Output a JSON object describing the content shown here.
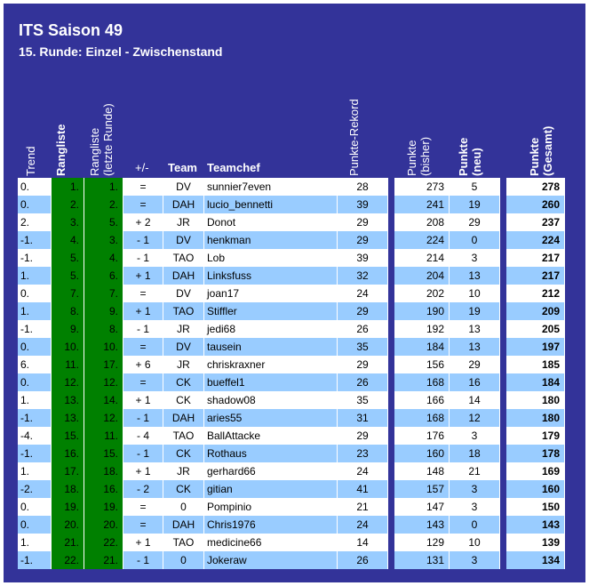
{
  "title": "ITS Saison 49",
  "subtitle": "15. Runde: Einzel - Zwischenstand",
  "headers": {
    "trend": "Trend",
    "rangliste": "Rangliste",
    "rangliste_prev_1": "Rangliste",
    "rangliste_prev_2": "(letzte Runde)",
    "plusminus": "+/-",
    "team": "Team",
    "teamchef": "Teamchef",
    "rekord": "Punkte-Rekord",
    "bisher_1": "Punkte",
    "bisher_2": "(bisher)",
    "neu_1": "Punkte",
    "neu_2": "(neu)",
    "gesamt_1": "Punkte",
    "gesamt_2": "(Gesamt)"
  },
  "colors": {
    "background": "#333399",
    "row_white": "#ffffff",
    "row_blue": "#99ccff",
    "rank_green": "#008000"
  },
  "rows": [
    {
      "trend": "0.",
      "rank": "1.",
      "prev": "1.",
      "pm": "=",
      "team": "DV",
      "chef": "sunnier7even",
      "rekord": "28",
      "bisher": "273",
      "neu": "5",
      "gesamt": "278"
    },
    {
      "trend": "0.",
      "rank": "2.",
      "prev": "2.",
      "pm": "=",
      "team": "DAH",
      "chef": "lucio_bennetti",
      "rekord": "39",
      "bisher": "241",
      "neu": "19",
      "gesamt": "260"
    },
    {
      "trend": "2.",
      "rank": "3.",
      "prev": "5.",
      "pm": "+ 2",
      "team": "JR",
      "chef": "Donot",
      "rekord": "29",
      "bisher": "208",
      "neu": "29",
      "gesamt": "237"
    },
    {
      "trend": "-1.",
      "rank": "4.",
      "prev": "3.",
      "pm": "- 1",
      "team": "DV",
      "chef": "henkman",
      "rekord": "29",
      "bisher": "224",
      "neu": "0",
      "gesamt": "224"
    },
    {
      "trend": "-1.",
      "rank": "5.",
      "prev": "4.",
      "pm": "- 1",
      "team": "TAO",
      "chef": "Lob",
      "rekord": "39",
      "bisher": "214",
      "neu": "3",
      "gesamt": "217"
    },
    {
      "trend": "1.",
      "rank": "5.",
      "prev": "6.",
      "pm": "+ 1",
      "team": "DAH",
      "chef": "Linksfuss",
      "rekord": "32",
      "bisher": "204",
      "neu": "13",
      "gesamt": "217"
    },
    {
      "trend": "0.",
      "rank": "7.",
      "prev": "7.",
      "pm": "=",
      "team": "DV",
      "chef": "joan17",
      "rekord": "24",
      "bisher": "202",
      "neu": "10",
      "gesamt": "212"
    },
    {
      "trend": "1.",
      "rank": "8.",
      "prev": "9.",
      "pm": "+ 1",
      "team": "TAO",
      "chef": "Stiffler",
      "rekord": "29",
      "bisher": "190",
      "neu": "19",
      "gesamt": "209"
    },
    {
      "trend": "-1.",
      "rank": "9.",
      "prev": "8.",
      "pm": "- 1",
      "team": "JR",
      "chef": "jedi68",
      "rekord": "26",
      "bisher": "192",
      "neu": "13",
      "gesamt": "205"
    },
    {
      "trend": "0.",
      "rank": "10.",
      "prev": "10.",
      "pm": "=",
      "team": "DV",
      "chef": "tausein",
      "rekord": "35",
      "bisher": "184",
      "neu": "13",
      "gesamt": "197"
    },
    {
      "trend": "6.",
      "rank": "11.",
      "prev": "17.",
      "pm": "+ 6",
      "team": "JR",
      "chef": "chriskraxner",
      "rekord": "29",
      "bisher": "156",
      "neu": "29",
      "gesamt": "185"
    },
    {
      "trend": "0.",
      "rank": "12.",
      "prev": "12.",
      "pm": "=",
      "team": "CK",
      "chef": "bueffel1",
      "rekord": "26",
      "bisher": "168",
      "neu": "16",
      "gesamt": "184"
    },
    {
      "trend": "1.",
      "rank": "13.",
      "prev": "14.",
      "pm": "+ 1",
      "team": "CK",
      "chef": "shadow08",
      "rekord": "35",
      "bisher": "166",
      "neu": "14",
      "gesamt": "180"
    },
    {
      "trend": "-1.",
      "rank": "13.",
      "prev": "12.",
      "pm": "- 1",
      "team": "DAH",
      "chef": "aries55",
      "rekord": "31",
      "bisher": "168",
      "neu": "12",
      "gesamt": "180"
    },
    {
      "trend": "-4.",
      "rank": "15.",
      "prev": "11.",
      "pm": "- 4",
      "team": "TAO",
      "chef": "BallAttacke",
      "rekord": "29",
      "bisher": "176",
      "neu": "3",
      "gesamt": "179"
    },
    {
      "trend": "-1.",
      "rank": "16.",
      "prev": "15.",
      "pm": "- 1",
      "team": "CK",
      "chef": "Rothaus",
      "rekord": "23",
      "bisher": "160",
      "neu": "18",
      "gesamt": "178"
    },
    {
      "trend": "1.",
      "rank": "17.",
      "prev": "18.",
      "pm": "+ 1",
      "team": "JR",
      "chef": "gerhard66",
      "rekord": "24",
      "bisher": "148",
      "neu": "21",
      "gesamt": "169"
    },
    {
      "trend": "-2.",
      "rank": "18.",
      "prev": "16.",
      "pm": "- 2",
      "team": "CK",
      "chef": "gitian",
      "rekord": "41",
      "bisher": "157",
      "neu": "3",
      "gesamt": "160"
    },
    {
      "trend": "0.",
      "rank": "19.",
      "prev": "19.",
      "pm": "=",
      "team": "0",
      "chef": "Pompinio",
      "rekord": "21",
      "bisher": "147",
      "neu": "3",
      "gesamt": "150"
    },
    {
      "trend": "0.",
      "rank": "20.",
      "prev": "20.",
      "pm": "=",
      "team": "DAH",
      "chef": "Chris1976",
      "rekord": "24",
      "bisher": "143",
      "neu": "0",
      "gesamt": "143"
    },
    {
      "trend": "1.",
      "rank": "21.",
      "prev": "22.",
      "pm": "+ 1",
      "team": "TAO",
      "chef": "medicine66",
      "rekord": "14",
      "bisher": "129",
      "neu": "10",
      "gesamt": "139"
    },
    {
      "trend": "-1.",
      "rank": "22.",
      "prev": "21.",
      "pm": "- 1",
      "team": "0",
      "chef": "Jokeraw",
      "rekord": "26",
      "bisher": "131",
      "neu": "3",
      "gesamt": "134"
    }
  ]
}
